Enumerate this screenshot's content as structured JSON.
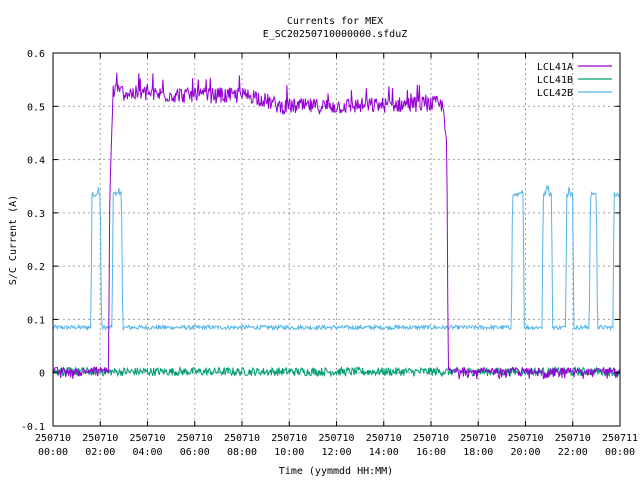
{
  "chart_data": {
    "type": "line",
    "title": "Currents for MEX",
    "subtitle": "E_SC20250710000000.sfduZ",
    "xlabel": "Time (yymmdd HH:MM)",
    "ylabel": "S/C Current (A)",
    "xlim": [
      "2025-07-10 00:00",
      "2025-07-11 00:00"
    ],
    "ylim": [
      -0.1,
      0.6
    ],
    "yticks": [
      -0.1,
      0,
      0.1,
      0.2,
      0.3,
      0.4,
      0.5,
      0.6
    ],
    "ytick_labels": [
      "-0.1",
      "0",
      "0.1",
      "0.2",
      "0.3",
      "0.4",
      "0.5",
      "0.6"
    ],
    "xticks": [
      {
        "date": "250710",
        "time": "00:00",
        "hours": 0
      },
      {
        "date": "250710",
        "time": "02:00",
        "hours": 2
      },
      {
        "date": "250710",
        "time": "04:00",
        "hours": 4
      },
      {
        "date": "250710",
        "time": "06:00",
        "hours": 6
      },
      {
        "date": "250710",
        "time": "08:00",
        "hours": 8
      },
      {
        "date": "250710",
        "time": "10:00",
        "hours": 10
      },
      {
        "date": "250710",
        "time": "12:00",
        "hours": 12
      },
      {
        "date": "250710",
        "time": "14:00",
        "hours": 14
      },
      {
        "date": "250710",
        "time": "16:00",
        "hours": 16
      },
      {
        "date": "250710",
        "time": "18:00",
        "hours": 18
      },
      {
        "date": "250710",
        "time": "20:00",
        "hours": 20
      },
      {
        "date": "250710",
        "time": "22:00",
        "hours": 22
      },
      {
        "date": "250711",
        "time": "00:00",
        "hours": 24
      }
    ],
    "grid": true,
    "legend_position": "top-right",
    "series": [
      {
        "name": "LCL41A",
        "color": "#9400d3",
        "x_hours": [
          0,
          2.35,
          2.4,
          2.45,
          2.55,
          3.0,
          6.0,
          7.0,
          8.5,
          9.3,
          9.6,
          12.0,
          16.2,
          16.5,
          16.65,
          16.7,
          16.72,
          24
        ],
        "y": [
          0,
          0,
          0.3,
          0.4,
          0.53,
          0.525,
          0.52,
          0.52,
          0.52,
          0.505,
          0.5,
          0.5,
          0.505,
          0.5,
          0.45,
          0.25,
          0,
          0
        ]
      },
      {
        "name": "LCL41B",
        "color": "#009e73",
        "x_hours": [
          0,
          24
        ],
        "y": [
          0.002,
          0.002
        ]
      },
      {
        "name": "LCL42B",
        "color": "#56b4e9",
        "x_hours": [
          0,
          1.6,
          1.65,
          2.0,
          2.05,
          2.5,
          2.55,
          2.9,
          2.95,
          19.4,
          19.45,
          19.9,
          19.95,
          20.7,
          20.75,
          21.1,
          21.15,
          21.7,
          21.75,
          22.0,
          22.05,
          22.7,
          22.75,
          23.0,
          23.05,
          23.7,
          23.75,
          24
        ],
        "y": [
          0.085,
          0.085,
          0.335,
          0.335,
          0.085,
          0.085,
          0.335,
          0.335,
          0.085,
          0.085,
          0.335,
          0.335,
          0.085,
          0.085,
          0.335,
          0.335,
          0.085,
          0.085,
          0.335,
          0.335,
          0.085,
          0.085,
          0.335,
          0.335,
          0.085,
          0.085,
          0.335,
          0.335
        ]
      }
    ]
  }
}
